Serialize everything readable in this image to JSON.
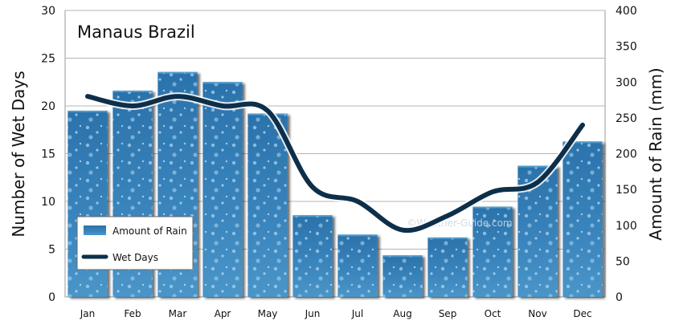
{
  "chart_data": {
    "type": "bar",
    "title": "Manaus Brazil",
    "ylabel": "Number of Wet Days",
    "y2label": "Amount of Rain (mm)",
    "watermark": "©Weather-Guide.com",
    "categories": [
      "Jan",
      "Feb",
      "Mar",
      "Apr",
      "May",
      "Jun",
      "Jul",
      "Aug",
      "Sep",
      "Oct",
      "Nov",
      "Dec"
    ],
    "ylim": [
      0,
      30
    ],
    "y2lim": [
      0,
      400
    ],
    "yticks": [
      0,
      5,
      10,
      15,
      20,
      25,
      30
    ],
    "y2ticks": [
      0,
      50,
      100,
      150,
      200,
      250,
      300,
      350,
      400
    ],
    "grid": true,
    "legend_position": "bottom-left",
    "series": [
      {
        "name": "Amount of Rain",
        "type": "bar",
        "axis": "right",
        "color": "#2e78b0",
        "values": [
          260,
          288,
          314,
          300,
          256,
          114,
          87,
          58,
          83,
          126,
          183,
          217
        ]
      },
      {
        "name": "Wet Days",
        "type": "line",
        "axis": "left",
        "color": "#0d2f4a",
        "values": [
          21,
          20,
          21,
          20,
          19.5,
          11.5,
          10,
          7,
          8.5,
          11,
          12,
          18
        ]
      }
    ]
  }
}
